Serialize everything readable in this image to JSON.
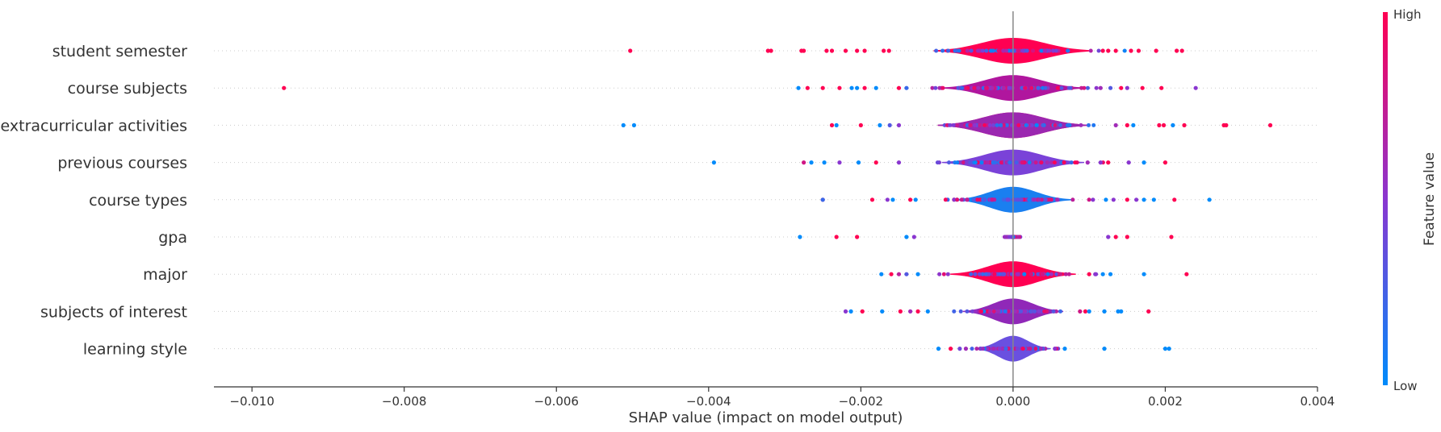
{
  "chart_data": {
    "type": "violin",
    "xlabel": "SHAP value (impact on model output)",
    "xlim": [
      -0.0105,
      0.004
    ],
    "xticks": [
      -0.01,
      -0.008,
      -0.006,
      -0.004,
      -0.002,
      0.0,
      0.002,
      0.004
    ],
    "xtick_labels": [
      "−0.010",
      "−0.008",
      "−0.006",
      "−0.004",
      "−0.002",
      "0.000",
      "0.002",
      "0.004"
    ],
    "colorbar": {
      "title": "Feature value",
      "high_label": "High",
      "low_label": "Low",
      "low_color": "#008bfb",
      "high_color": "#ff0052"
    },
    "grid": "dotted horizontal per feature",
    "features": [
      {
        "name": "student semester",
        "color": "#ff0052",
        "width": 0.00095,
        "outliers": [
          [
            -0.00503,
            1.0
          ],
          [
            -0.00322,
            1.0
          ],
          [
            -0.00318,
            1.0
          ],
          [
            -0.00278,
            1.0
          ],
          [
            -0.00275,
            1.0
          ],
          [
            -0.00245,
            1.0
          ],
          [
            -0.00238,
            1.0
          ],
          [
            -0.0022,
            1.0
          ],
          [
            -0.00205,
            1.0
          ],
          [
            -0.00195,
            1.0
          ],
          [
            -0.0017,
            1.0
          ],
          [
            -0.00163,
            1.0
          ],
          [
            0.00118,
            1.0
          ],
          [
            0.00125,
            1.0
          ],
          [
            0.00135,
            1.0
          ],
          [
            0.00155,
            1.0
          ],
          [
            0.00165,
            1.0
          ],
          [
            0.00188,
            1.0
          ],
          [
            0.00215,
            1.0
          ],
          [
            0.00222,
            1.0
          ]
        ]
      },
      {
        "name": "course subjects",
        "color": "#b0169e",
        "width": 0.00085,
        "outliers": [
          [
            -0.00958,
            1.0
          ],
          [
            -0.00282,
            0.0
          ],
          [
            -0.0027,
            1.0
          ],
          [
            -0.0025,
            1.0
          ],
          [
            -0.00228,
            1.0
          ],
          [
            -0.00212,
            0.0
          ],
          [
            -0.00205,
            0.0
          ],
          [
            -0.00195,
            1.0
          ],
          [
            -0.0018,
            0.0
          ],
          [
            -0.0015,
            1.0
          ],
          [
            -0.0014,
            0.2
          ],
          [
            0.00115,
            0.6
          ],
          [
            0.00128,
            0.3
          ],
          [
            0.00142,
            1.0
          ],
          [
            0.0015,
            0.5
          ],
          [
            0.0017,
            1.0
          ],
          [
            0.00195,
            1.0
          ],
          [
            0.0024,
            0.5
          ]
        ]
      },
      {
        "name": "extracurricular activities",
        "color": "#ff0052",
        "width": 0.0009,
        "left_color": "#9b27b0",
        "outliers": [
          [
            -0.00512,
            0.0
          ],
          [
            -0.00498,
            0.0
          ],
          [
            -0.00238,
            1.0
          ],
          [
            -0.00232,
            0.0
          ],
          [
            -0.002,
            1.0
          ],
          [
            -0.00175,
            0.0
          ],
          [
            -0.00162,
            0.3
          ],
          [
            -0.0015,
            0.5
          ],
          [
            0.00135,
            0.6
          ],
          [
            0.0015,
            1.0
          ],
          [
            0.00158,
            0.0
          ],
          [
            0.00192,
            1.0
          ],
          [
            0.00198,
            1.0
          ],
          [
            0.0021,
            0.0
          ],
          [
            0.00225,
            1.0
          ],
          [
            0.00277,
            1.0
          ],
          [
            0.0028,
            1.0
          ],
          [
            0.00338,
            1.0
          ]
        ]
      },
      {
        "name": "previous courses",
        "color": "#7a42d8",
        "width": 0.00085,
        "outliers": [
          [
            -0.00393,
            0.0
          ],
          [
            -0.00275,
            0.8
          ],
          [
            -0.00265,
            0.0
          ],
          [
            -0.00248,
            0.0
          ],
          [
            -0.00228,
            0.5
          ],
          [
            -0.00203,
            0.0
          ],
          [
            -0.0018,
            1.0
          ],
          [
            -0.0015,
            0.5
          ],
          [
            0.00098,
            0.6
          ],
          [
            0.00115,
            0.5
          ],
          [
            0.00125,
            1.0
          ],
          [
            0.00152,
            0.5
          ],
          [
            0.00172,
            0.0
          ],
          [
            0.002,
            1.0
          ]
        ]
      },
      {
        "name": "course types",
        "color": "#1a7ff0",
        "width": 0.0007,
        "right_color": "#008bfb",
        "outliers": [
          [
            -0.0025,
            0.8
          ],
          [
            -0.0025,
            0.2
          ],
          [
            -0.00185,
            1.0
          ],
          [
            -0.00165,
            0.5
          ],
          [
            -0.00158,
            0.0
          ],
          [
            -0.00135,
            1.0
          ],
          [
            -0.00128,
            0.0
          ],
          [
            0.00105,
            0.5
          ],
          [
            0.00122,
            0.0
          ],
          [
            0.00132,
            0.5
          ],
          [
            0.0015,
            1.0
          ],
          [
            0.00162,
            0.5
          ],
          [
            0.00172,
            0.0
          ],
          [
            0.00185,
            0.0
          ],
          [
            0.00212,
            1.0
          ],
          [
            0.00258,
            0.0
          ]
        ]
      },
      {
        "name": "gpa",
        "color": "#d50f6c",
        "width": 8e-05,
        "flat": true,
        "outliers": [
          [
            -0.0028,
            0.0
          ],
          [
            -0.00232,
            1.0
          ],
          [
            -0.00205,
            1.0
          ],
          [
            -0.0014,
            0.0
          ],
          [
            -0.0013,
            0.5
          ],
          [
            0.00125,
            0.5
          ],
          [
            0.00135,
            1.0
          ],
          [
            0.0015,
            1.0
          ],
          [
            0.00208,
            1.0
          ]
        ]
      },
      {
        "name": "major",
        "color": "#ff0052",
        "width": 0.00075,
        "outliers": [
          [
            -0.00173,
            0.0
          ],
          [
            -0.0016,
            1.0
          ],
          [
            -0.0015,
            0.7
          ],
          [
            -0.0014,
            0.3
          ],
          [
            -0.00125,
            0.0
          ],
          [
            0.001,
            1.0
          ],
          [
            0.00108,
            0.5
          ],
          [
            0.00118,
            0.0
          ],
          [
            0.00128,
            0.0
          ],
          [
            0.00172,
            0.0
          ],
          [
            0.00228,
            1.0
          ]
        ]
      },
      {
        "name": "subjects of interest",
        "color": "#9028b8",
        "width": 0.0006,
        "right_color": "#1f80f2",
        "outliers": [
          [
            -0.0022,
            0.5
          ],
          [
            -0.00213,
            0.0
          ],
          [
            -0.00198,
            1.0
          ],
          [
            -0.00172,
            0.0
          ],
          [
            -0.00148,
            1.0
          ],
          [
            -0.00135,
            0.6
          ],
          [
            -0.00125,
            1.0
          ],
          [
            -0.00112,
            0.0
          ],
          [
            0.00088,
            0.8
          ],
          [
            0.00095,
            1.0
          ],
          [
            0.001,
            0.0
          ],
          [
            0.0012,
            0.0
          ],
          [
            0.00138,
            0.0
          ],
          [
            0.00142,
            0.0
          ],
          [
            0.00178,
            1.0
          ]
        ]
      },
      {
        "name": "learning style",
        "color": "#6a50e0",
        "width": 0.00045,
        "outliers": [
          [
            -0.00098,
            0.0
          ],
          [
            -0.00082,
            1.0
          ],
          [
            -0.0007,
            0.4
          ],
          [
            -0.00062,
            0.6
          ],
          [
            0.00055,
            0.5
          ],
          [
            0.00068,
            0.0
          ],
          [
            0.0012,
            0.0
          ],
          [
            0.002,
            0.0
          ],
          [
            0.00205,
            0.0
          ]
        ]
      }
    ]
  }
}
